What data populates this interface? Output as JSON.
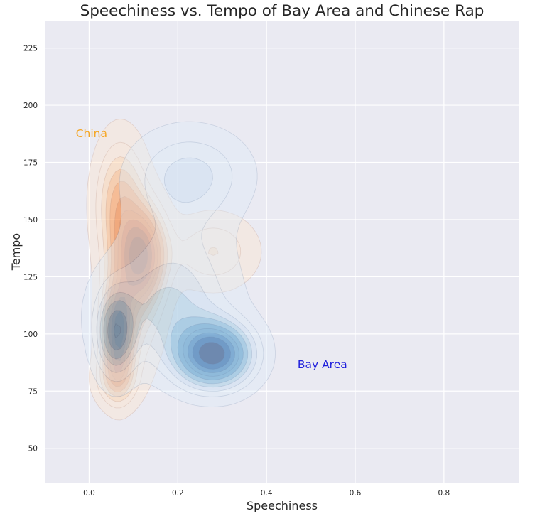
{
  "chart_data": {
    "type": "kde-contour",
    "title": "Speechiness vs. Tempo of Bay Area and Chinese Rap",
    "xlabel": "Speechiness",
    "ylabel": "Tempo",
    "xlim": [
      -0.1,
      0.97
    ],
    "ylim": [
      35,
      237
    ],
    "xticks": [
      0.0,
      0.2,
      0.4,
      0.6,
      0.8
    ],
    "xtick_labels": [
      "0.0",
      "0.2",
      "0.4",
      "0.6",
      "0.8"
    ],
    "yticks": [
      50,
      75,
      100,
      125,
      150,
      175,
      200,
      225
    ],
    "ytick_labels": [
      "50",
      "75",
      "100",
      "125",
      "150",
      "175",
      "200",
      "225"
    ],
    "grid": true,
    "background": "#eaeaf2",
    "series": [
      {
        "name": "China",
        "colormap": "Oranges",
        "color": "#f5a623",
        "label_at": {
          "x": -0.03,
          "y": 186
        },
        "modes": [
          {
            "x": 0.065,
            "y": 100,
            "sx": 0.022,
            "sy": 14,
            "w": 1.0
          },
          {
            "x": 0.12,
            "y": 135,
            "sx": 0.035,
            "sy": 13,
            "w": 0.85
          },
          {
            "x": 0.07,
            "y": 158,
            "sx": 0.035,
            "sy": 17,
            "w": 0.45
          },
          {
            "x": 0.28,
            "y": 136,
            "sx": 0.06,
            "sy": 10,
            "w": 0.25
          },
          {
            "x": 0.06,
            "y": 80,
            "sx": 0.03,
            "sy": 7,
            "w": 0.3
          },
          {
            "x": 0.1,
            "y": 120,
            "sx": 0.04,
            "sy": 22,
            "w": 0.4
          }
        ]
      },
      {
        "name": "Bay Area",
        "colormap": "Blues",
        "color": "#1f1fdc",
        "label_at": {
          "x": 0.47,
          "y": 85
        },
        "modes": [
          {
            "x": 0.28,
            "y": 91,
            "sx": 0.055,
            "sy": 9,
            "w": 1.0
          },
          {
            "x": 0.06,
            "y": 100,
            "sx": 0.028,
            "sy": 12,
            "w": 0.5
          },
          {
            "x": 0.23,
            "y": 170,
            "sx": 0.08,
            "sy": 12,
            "w": 0.22
          },
          {
            "x": 0.17,
            "y": 110,
            "sx": 0.09,
            "sy": 15,
            "w": 0.28
          },
          {
            "x": 0.2,
            "y": 140,
            "sx": 0.08,
            "sy": 22,
            "w": 0.12
          }
        ]
      }
    ]
  }
}
